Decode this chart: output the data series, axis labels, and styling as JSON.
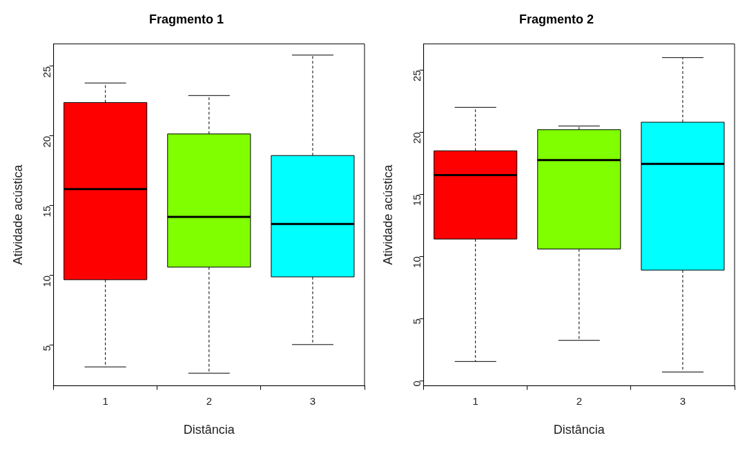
{
  "chart_data": [
    {
      "type": "box",
      "title": "Fragmento 1",
      "xlabel": "Distância",
      "ylabel": "Atividade acústica",
      "categories": [
        "1",
        "2",
        "3"
      ],
      "colors": [
        "#ff0000",
        "#7fff00",
        "#00ffff"
      ],
      "ylim": [
        2.1,
        26.6
      ],
      "yticks": [
        5,
        10,
        15,
        20,
        25
      ],
      "grid": false,
      "boxes": [
        {
          "low": 3.45,
          "q1": 9.7,
          "median": 16.2,
          "q3": 22.4,
          "high": 23.8
        },
        {
          "low": 3.0,
          "q1": 10.6,
          "median": 14.2,
          "q3": 20.15,
          "high": 22.9
        },
        {
          "low": 5.05,
          "q1": 9.9,
          "median": 13.7,
          "q3": 18.6,
          "high": 25.8
        }
      ]
    },
    {
      "type": "box",
      "title": "Fragmento 2",
      "xlabel": "Distância",
      "ylabel": "Atividade acústica",
      "categories": [
        "1",
        "2",
        "3"
      ],
      "colors": [
        "#ff0000",
        "#7fff00",
        "#00ffff"
      ],
      "ylim": [
        -0.4,
        27.1
      ],
      "yticks": [
        0,
        5,
        10,
        15,
        20,
        25
      ],
      "grid": false,
      "boxes": [
        {
          "low": 1.55,
          "q1": 11.4,
          "median": 16.55,
          "q3": 18.5,
          "high": 22.0
        },
        {
          "low": 3.25,
          "q1": 10.6,
          "median": 17.75,
          "q3": 20.2,
          "high": 20.5
        },
        {
          "low": 0.7,
          "q1": 8.9,
          "median": 17.45,
          "q3": 20.8,
          "high": 26.0
        }
      ]
    }
  ]
}
